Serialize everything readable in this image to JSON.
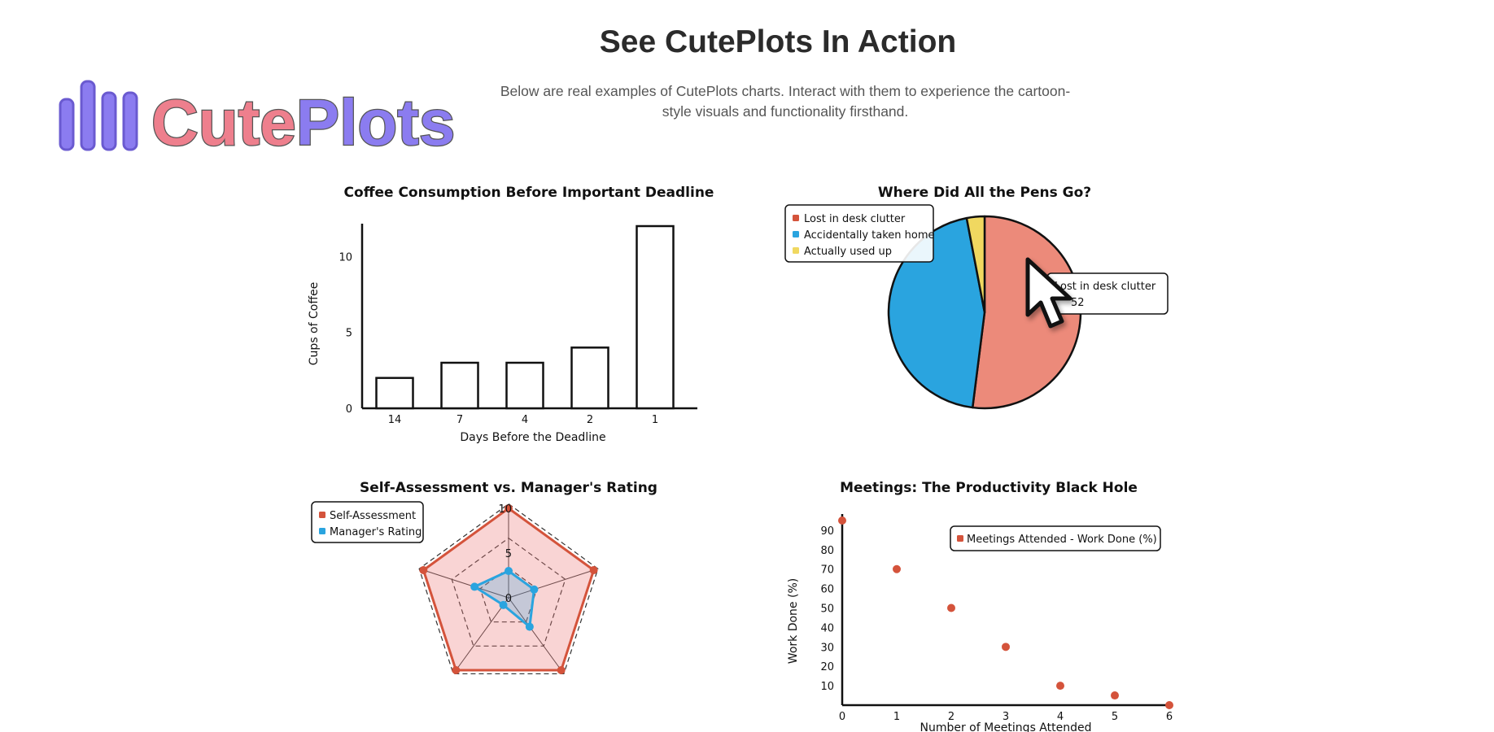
{
  "page": {
    "heading": "See CutePlots In Action",
    "subheading": "Below are real examples of CutePlots charts. Interact with them to experience the cartoon-style visuals and functionality firsthand.",
    "logo_text": "CutePlots",
    "logo_icon": "bar-chart-logo-icon",
    "cursor_icon": "mouse-pointer-icon"
  },
  "colors": {
    "red": "#d4533b",
    "red_light": "#ec8a7a",
    "blue": "#2aa4df",
    "yellow": "#f0d860",
    "logo_pink": "#ee7f8d",
    "logo_purple": "#8b7cf0"
  },
  "chart_data": [
    {
      "type": "bar",
      "title": "Coffee Consumption Before Important Deadline",
      "xlabel": "Days Before the Deadline",
      "ylabel": "Cups of Coffee",
      "categories": [
        "14",
        "7",
        "4",
        "2",
        "1"
      ],
      "values": [
        2,
        3,
        3,
        4,
        12
      ],
      "ylim": [
        0,
        12
      ],
      "yticks": [
        0,
        5,
        10
      ],
      "grid": false
    },
    {
      "type": "pie",
      "title": "Where Did All the Pens Go?",
      "labels": [
        "Lost in desk clutter",
        "Accidentally taken home",
        "Actually used up"
      ],
      "values": [
        52,
        45,
        3
      ],
      "legend": "top-left",
      "tooltip": {
        "label": "Lost in desk clutter",
        "value": "52"
      }
    },
    {
      "type": "radar",
      "title": "Self-Assessment vs. Manager's Rating",
      "axes": 5,
      "rticks": [
        "0",
        "5",
        "10"
      ],
      "rmax": 10,
      "series": [
        {
          "name": "Self-Assessment",
          "values": [
            10,
            10,
            10,
            10,
            10
          ]
        },
        {
          "name": "Manager's Rating",
          "values": [
            3,
            3,
            4,
            1,
            4
          ]
        }
      ],
      "legend": "top-left"
    },
    {
      "type": "scatter",
      "title": "Meetings: The Productivity Black Hole",
      "xlabel": "Number of Meetings Attended",
      "ylabel": "Work Done (%)",
      "series": [
        {
          "name": "Meetings Attended - Work Done (%)",
          "x": [
            0,
            1,
            2,
            3,
            4,
            5,
            6
          ],
          "y": [
            95,
            70,
            50,
            30,
            10,
            5,
            0
          ]
        }
      ],
      "xticks": [
        0,
        1,
        2,
        3,
        4,
        5,
        6
      ],
      "yticks": [
        10,
        20,
        30,
        40,
        50,
        60,
        70,
        80,
        90
      ],
      "xlim": [
        0,
        6
      ],
      "ylim": [
        0,
        95
      ],
      "legend": "top-right"
    }
  ]
}
